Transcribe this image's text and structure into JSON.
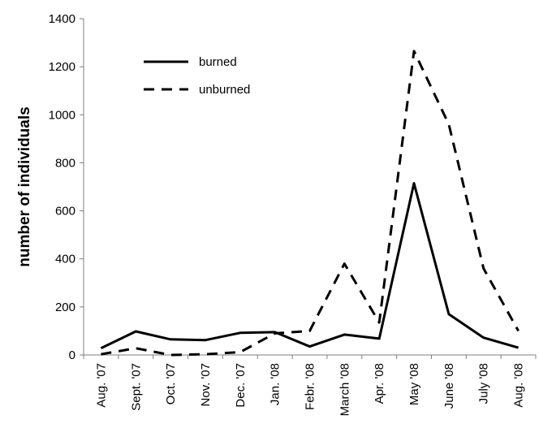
{
  "chart_data": {
    "type": "line",
    "title": "",
    "xlabel": "",
    "ylabel": "number of individuals",
    "ylim": [
      0,
      1400
    ],
    "yticks": [
      0,
      200,
      400,
      600,
      800,
      1000,
      1200,
      1400
    ],
    "grid": false,
    "legend_position": "top-left",
    "categories": [
      "Aug. '07",
      "Sept. '07",
      "Oct. '07",
      "Nov. '07",
      "Dec. '07",
      "Jan. '08",
      "Febr. '08",
      "March '08",
      "Apr. '08",
      "May '08",
      "June '08",
      "July '08",
      "Aug. '08"
    ],
    "series": [
      {
        "name": "burned",
        "style": "solid",
        "color": "#000000",
        "values": [
          28,
          98,
          65,
          62,
          92,
          95,
          35,
          85,
          68,
          715,
          170,
          72,
          30
        ]
      },
      {
        "name": "unburned",
        "style": "dashed",
        "color": "#000000",
        "values": [
          3,
          28,
          0,
          3,
          12,
          90,
          100,
          380,
          135,
          1265,
          960,
          360,
          100
        ]
      }
    ]
  }
}
